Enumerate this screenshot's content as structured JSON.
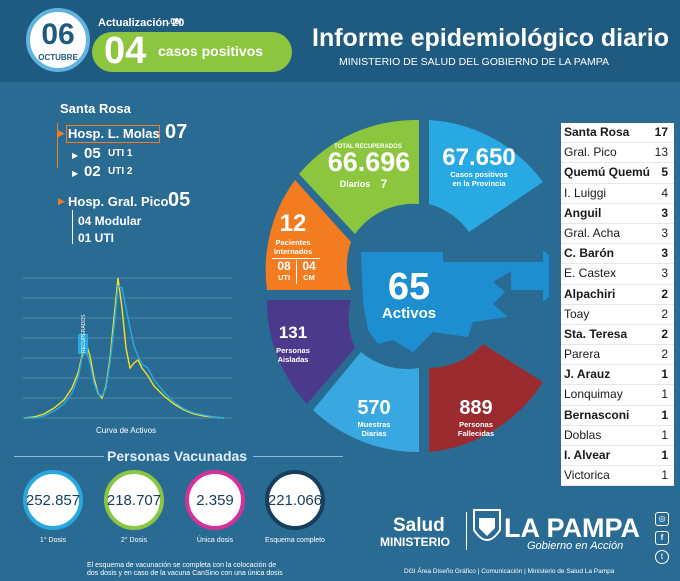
{
  "header": {
    "day": "06",
    "month": "OCTUBRE",
    "update_label": "Actualización 20",
    "update_time": ".00h",
    "new_cases_number": "04",
    "new_cases_label": "casos positivos",
    "title": "Informe epidemiológico diario",
    "subtitle": "MINISTERIO DE SALUD DEL GOBIERNO DE LA PAMPA"
  },
  "hospitals": {
    "city": "Santa Rosa",
    "molas_label": "Hosp. L. Molas",
    "molas_total": "07",
    "molas_uti1_num": "05",
    "molas_uti1_label": "UTI 1",
    "molas_uti2_num": "02",
    "molas_uti2_label": "UTI 2",
    "pico_label": "Hosp. Gral. Pico",
    "pico_total": "05",
    "pico_modular": "04 Modular",
    "pico_uti": "01 UTI"
  },
  "wheel": {
    "recovered_label": "TOTAL RECUPERADOS",
    "recovered": "66.696",
    "daily_label": "Diarios",
    "daily": "7",
    "positives": "67.650",
    "positives_label_1": "Casos positivos",
    "positives_label_2": "en la Provincia",
    "hospitalized": "12",
    "hospitalized_label_1": "Pacientes",
    "hospitalized_label_2": "Internados",
    "uti": "08",
    "uti_label": "UTI",
    "cm": "04",
    "cm_label": "CM",
    "active": "65",
    "active_label": "Activos",
    "isolated": "131",
    "isolated_label_1": "Personas",
    "isolated_label_2": "Aisladas",
    "samples": "570",
    "samples_label_1": "Muestras",
    "samples_label_2": "Diarias",
    "deceased": "889",
    "deceased_label_1": "Personas",
    "deceased_label_2": "Fallecidas",
    "colors": {
      "recovered": "#8cc63f",
      "positives": "#29a9e1",
      "hospitalized": "#f47c20",
      "isolated": "#4b3a8c",
      "samples": "#3aa8e0",
      "deceased": "#9b2b2f",
      "center": "#1d8fd1"
    }
  },
  "chart": {
    "title": "Curva de Activos",
    "peak_label": "RECUPERADOS"
  },
  "vaccination": {
    "title": "Personas Vacunadas",
    "items": [
      {
        "value": "252.857",
        "label": "1° Dosis",
        "color": "#29a9e1"
      },
      {
        "value": "218.707",
        "label": "2° Dosis",
        "color": "#8cc63f"
      },
      {
        "value": "2.359",
        "label": "Única dosis",
        "color": "#d6309a"
      },
      {
        "value": "221.066",
        "label": "Esquema completo",
        "color": "#173e5c"
      }
    ],
    "note_1": "El esquema de vacunación se completa con la colocación de",
    "note_2": "dos dosis y en caso de la vacuna CanSino con una única dosis"
  },
  "table": [
    {
      "name": "Santa Rosa",
      "value": "17",
      "bold": true
    },
    {
      "name": "Gral. Pico",
      "value": "13",
      "bold": false
    },
    {
      "name": "Quemú Quemú",
      "value": "5",
      "bold": true
    },
    {
      "name": "I. Luiggi",
      "value": "4",
      "bold": false
    },
    {
      "name": "Anguil",
      "value": "3",
      "bold": true
    },
    {
      "name": "Gral. Acha",
      "value": "3",
      "bold": false
    },
    {
      "name": "C. Barón",
      "value": "3",
      "bold": true
    },
    {
      "name": "E. Castex",
      "value": "3",
      "bold": false
    },
    {
      "name": "Alpachiri",
      "value": "2",
      "bold": true
    },
    {
      "name": "Toay",
      "value": "2",
      "bold": false
    },
    {
      "name": "Sta. Teresa",
      "value": "2",
      "bold": true
    },
    {
      "name": "Parera",
      "value": "2",
      "bold": false
    },
    {
      "name": "J. Arauz",
      "value": "1",
      "bold": true
    },
    {
      "name": "Lonquimay",
      "value": "1",
      "bold": false
    },
    {
      "name": "Bernasconi",
      "value": "1",
      "bold": true
    },
    {
      "name": "Doblas",
      "value": "1",
      "bold": false
    },
    {
      "name": "I. Alvear",
      "value": "1",
      "bold": true
    },
    {
      "name": "Victorica",
      "value": "1",
      "bold": false
    }
  ],
  "footer": {
    "salud": "Salud",
    "ministerio": "MINISTERIO",
    "la_pampa": "LA PAMPA",
    "gobierno": "Gobierno en Acción",
    "credits": "DGI Área Diseño Gráfico  |  Comunicación  |  Ministerio de Salud La Pampa",
    "social_icons": [
      "instagram-icon",
      "facebook-icon",
      "twitter-icon"
    ]
  }
}
